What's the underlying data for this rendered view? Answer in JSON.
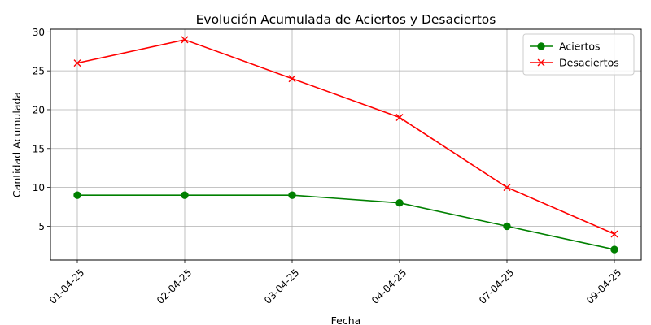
{
  "chart_data": {
    "type": "line",
    "title": "Evolución Acumulada de Aciertos y Desaciertos",
    "xlabel": "Fecha",
    "ylabel": "Cantidad Acumulada",
    "categories": [
      "01-04-25",
      "02-04-25",
      "03-04-25",
      "04-04-25",
      "07-04-25",
      "09-04-25"
    ],
    "ylim": [
      0.65,
      30.35
    ],
    "yticks": [
      5,
      10,
      15,
      20,
      25,
      30
    ],
    "grid": true,
    "legend_position": "top-right",
    "series": [
      {
        "name": "Aciertos",
        "values": [
          9,
          9,
          9,
          8,
          5,
          2
        ],
        "color": "#008000",
        "marker": "circle"
      },
      {
        "name": "Desaciertos",
        "values": [
          26,
          29,
          24,
          19,
          10,
          4
        ],
        "color": "#ff0000",
        "marker": "x"
      }
    ]
  }
}
